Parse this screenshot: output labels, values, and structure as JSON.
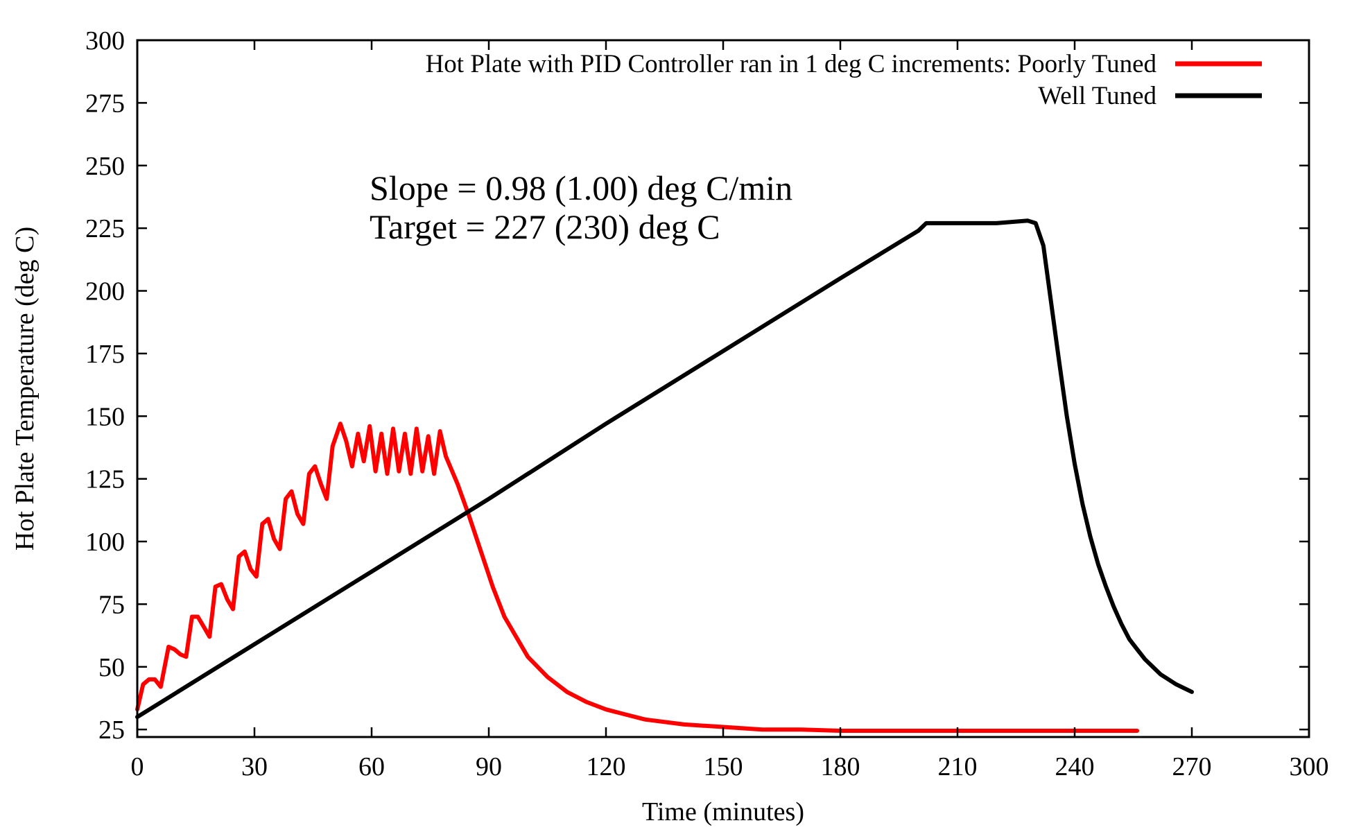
{
  "chart_data": {
    "type": "line",
    "title": "",
    "xlabel": "Time (minutes)",
    "ylabel": "Hot Plate Temperature (deg C)",
    "xlim": [
      0,
      300
    ],
    "ylim": [
      22,
      300
    ],
    "x_ticks": [
      0,
      30,
      60,
      90,
      120,
      150,
      180,
      210,
      240,
      270,
      300
    ],
    "y_ticks": [
      25,
      50,
      75,
      100,
      125,
      150,
      175,
      200,
      225,
      250,
      275,
      300
    ],
    "x_tick_labels": [
      "0",
      "30",
      "60",
      "90",
      "120",
      "150",
      "180",
      "210",
      "240",
      "270",
      "300"
    ],
    "y_tick_labels": [
      "25",
      "50",
      "75",
      "100",
      "125",
      "150",
      "175",
      "200",
      "225",
      "250",
      "275",
      "300"
    ],
    "grid": false,
    "legend_position": "top-right",
    "annotations": [
      "Slope = 0.98 (1.00) deg C/min",
      "Target = 227 (230) deg C"
    ],
    "series": [
      {
        "name": "Hot Plate with PID Controller ran in 1 deg C increments: Poorly Tuned",
        "color": "#ff0000",
        "points": [
          [
            0,
            33
          ],
          [
            1.5,
            43
          ],
          [
            3,
            45
          ],
          [
            4.5,
            45
          ],
          [
            6,
            42
          ],
          [
            8,
            58
          ],
          [
            9.5,
            57
          ],
          [
            11,
            55
          ],
          [
            12.5,
            54
          ],
          [
            14,
            70
          ],
          [
            15.5,
            70
          ],
          [
            17,
            66
          ],
          [
            18.5,
            62
          ],
          [
            20,
            82
          ],
          [
            21.5,
            83
          ],
          [
            23,
            77
          ],
          [
            24.5,
            73
          ],
          [
            26,
            94
          ],
          [
            27.5,
            96
          ],
          [
            29,
            89
          ],
          [
            30.5,
            86
          ],
          [
            32,
            107
          ],
          [
            33.5,
            109
          ],
          [
            35,
            101
          ],
          [
            36.5,
            97
          ],
          [
            38,
            117
          ],
          [
            39.5,
            120
          ],
          [
            41,
            111
          ],
          [
            42.5,
            107
          ],
          [
            44,
            127
          ],
          [
            45.5,
            130
          ],
          [
            47,
            123
          ],
          [
            48.5,
            117
          ],
          [
            50,
            138
          ],
          [
            52,
            147
          ],
          [
            53.5,
            140
          ],
          [
            55,
            130
          ],
          [
            56.5,
            143
          ],
          [
            58,
            132
          ],
          [
            59.5,
            146
          ],
          [
            61,
            128
          ],
          [
            62.5,
            143
          ],
          [
            64,
            127
          ],
          [
            65.5,
            145
          ],
          [
            67,
            128
          ],
          [
            68.5,
            143
          ],
          [
            70,
            127
          ],
          [
            71.5,
            145
          ],
          [
            73,
            128
          ],
          [
            74.5,
            142
          ],
          [
            76,
            127
          ],
          [
            77.5,
            144
          ],
          [
            79,
            134
          ],
          [
            82,
            123
          ],
          [
            85,
            110
          ],
          [
            88,
            96
          ],
          [
            91,
            82
          ],
          [
            94,
            70
          ],
          [
            97,
            62
          ],
          [
            100,
            54
          ],
          [
            105,
            46
          ],
          [
            110,
            40
          ],
          [
            115,
            36
          ],
          [
            120,
            33
          ],
          [
            125,
            31
          ],
          [
            130,
            29
          ],
          [
            140,
            27
          ],
          [
            150,
            26
          ],
          [
            160,
            25
          ],
          [
            170,
            25
          ],
          [
            180,
            24.5
          ],
          [
            200,
            24.5
          ],
          [
            220,
            24.5
          ],
          [
            240,
            24.5
          ],
          [
            256,
            24.5
          ]
        ]
      },
      {
        "name": "Well Tuned",
        "color": "#000000",
        "points": [
          [
            0,
            30
          ],
          [
            30,
            59
          ],
          [
            60,
            88
          ],
          [
            90,
            117
          ],
          [
            120,
            147
          ],
          [
            150,
            176
          ],
          [
            180,
            205
          ],
          [
            200,
            224
          ],
          [
            202,
            227
          ],
          [
            210,
            227
          ],
          [
            220,
            227
          ],
          [
            228,
            228
          ],
          [
            230,
            227
          ],
          [
            232,
            218
          ],
          [
            234,
            195
          ],
          [
            236,
            172
          ],
          [
            238,
            150
          ],
          [
            240,
            131
          ],
          [
            242,
            115
          ],
          [
            244,
            102
          ],
          [
            246,
            91
          ],
          [
            248,
            82
          ],
          [
            250,
            74
          ],
          [
            252,
            67
          ],
          [
            254,
            61
          ],
          [
            256,
            57
          ],
          [
            258,
            53
          ],
          [
            260,
            50
          ],
          [
            262,
            47
          ],
          [
            264,
            45
          ],
          [
            266,
            43
          ],
          [
            268,
            41.5
          ],
          [
            270,
            40
          ]
        ]
      }
    ]
  }
}
